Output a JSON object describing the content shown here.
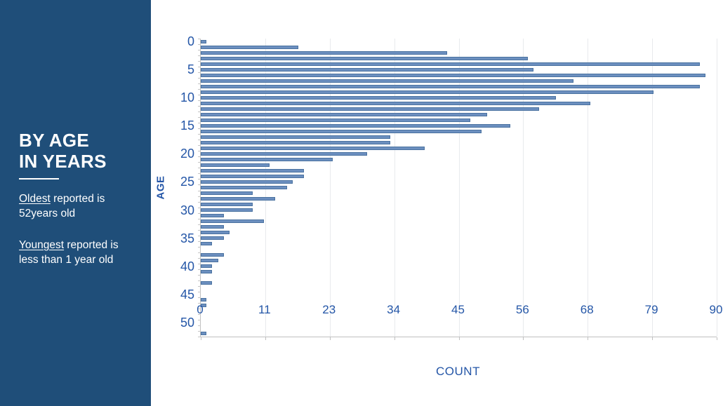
{
  "sidebar": {
    "bg_color": "#1F4E79",
    "title_line1": "BY AGE",
    "title_line2": "IN YEARS",
    "oldest_lead": "Oldest",
    "oldest_rest": " reported is 52years old",
    "youngest_lead": "Youngest",
    "youngest_rest": " reported is less than 1 year old"
  },
  "chart_data": {
    "type": "bar",
    "orientation": "horizontal",
    "title": "",
    "xlabel": "COUNT",
    "ylabel": "AGE",
    "xlim": [
      0,
      90
    ],
    "grid": true,
    "legend": false,
    "xtick_labels": [
      "0",
      "11",
      "23",
      "34",
      "45",
      "56",
      "68",
      "79",
      "90"
    ],
    "xtick_values": [
      0,
      11.25,
      22.5,
      33.75,
      45,
      56.25,
      67.5,
      78.75,
      90
    ],
    "ytick_labels": [
      "0",
      "5",
      "10",
      "15",
      "20",
      "25",
      "30",
      "35",
      "40",
      "45",
      "50"
    ],
    "ytick_ages": [
      0,
      5,
      10,
      15,
      20,
      25,
      30,
      35,
      40,
      45,
      50
    ],
    "categories": [
      0,
      1,
      2,
      3,
      4,
      5,
      6,
      7,
      8,
      9,
      10,
      11,
      12,
      13,
      14,
      15,
      16,
      17,
      18,
      19,
      20,
      21,
      22,
      23,
      24,
      25,
      26,
      27,
      28,
      29,
      30,
      31,
      32,
      33,
      34,
      35,
      36,
      37,
      38,
      39,
      40,
      41,
      42,
      43,
      44,
      45,
      46,
      47,
      48,
      49,
      50,
      51,
      52
    ],
    "values": [
      1,
      17,
      43,
      57,
      87,
      58,
      88,
      65,
      87,
      79,
      62,
      68,
      59,
      50,
      47,
      54,
      49,
      33,
      33,
      39,
      29,
      23,
      12,
      18,
      18,
      16,
      15,
      9,
      13,
      9,
      9,
      4,
      11,
      4,
      5,
      4,
      2,
      0,
      4,
      3,
      2,
      2,
      0,
      2,
      0,
      0,
      1,
      1,
      0,
      0,
      0,
      0,
      1
    ],
    "bar_color": "#6C8FBF",
    "bar_border_color": "#4A72A0",
    "axis_label_color": "#2456A7",
    "axis_line_color": "#C0C0C0",
    "gridline_color": "#E8EAED"
  }
}
